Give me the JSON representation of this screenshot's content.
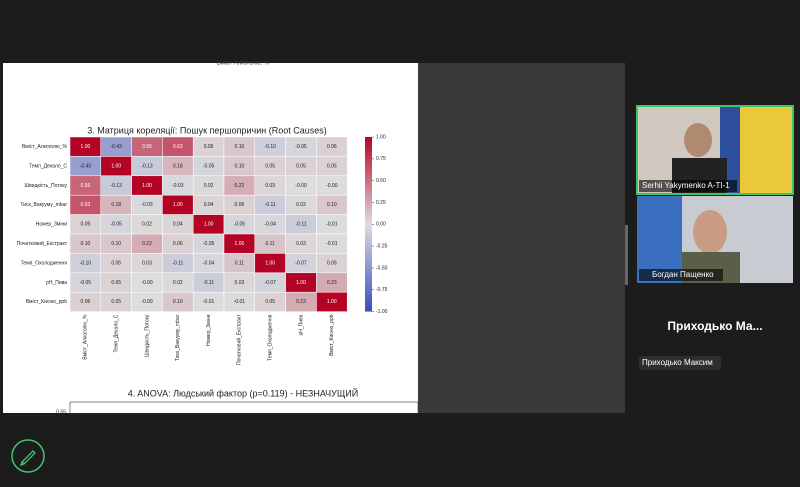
{
  "shared_screen": {
    "clipped_top_label": "Вміст Алкоголю, %",
    "anova": {
      "title": "4. ANOVA: Людський фактор (p=0.119) - НЕЗНАЧУЩИЙ",
      "ytick": "0.55"
    }
  },
  "chart_data": {
    "type": "heatmap",
    "title": "3. Матриця кореляції: Пошук першопричин (Root Causes)",
    "categories": [
      "Вміст_Алкоголю_%",
      "Темп_Декало_С",
      "Швидкість_Потоку",
      "Тиск_Вакууму_mbar",
      "Номер_Зміни",
      "Початковий_Екстракт",
      "Темп_Охолодження",
      "pH_Пива",
      "Вміст_Кисню_ppb"
    ],
    "values": [
      [
        1,
        -0.43,
        0.55,
        0.63,
        0.05,
        0.1,
        -0.1,
        -0.05,
        0.06
      ],
      [
        -0.43,
        1,
        -0.13,
        0.18,
        -0.05,
        0.1,
        0.05,
        0.05,
        0.05
      ],
      [
        0.55,
        -0.13,
        1,
        -0.03,
        0.02,
        0.22,
        0.03,
        0,
        0
      ],
      [
        0.63,
        0.18,
        -0.03,
        1,
        0.04,
        0.06,
        -0.11,
        0.02,
        0.1
      ],
      [
        0.05,
        -0.05,
        0.02,
        0.04,
        1,
        -0.05,
        -0.04,
        -0.11,
        -0.01
      ],
      [
        0.1,
        0.1,
        0.22,
        0.06,
        -0.05,
        1,
        0.11,
        0.03,
        -0.01
      ],
      [
        -0.1,
        0.05,
        0.03,
        -0.11,
        -0.04,
        0.11,
        1,
        -0.07,
        0.05
      ],
      [
        -0.05,
        0.05,
        0,
        0.02,
        -0.11,
        0.03,
        -0.07,
        1,
        0.23
      ],
      [
        0.06,
        0.05,
        0,
        0.1,
        -0.01,
        -0.01,
        0.05,
        0.23,
        1
      ]
    ],
    "value_labels": [
      [
        "1.00",
        "-0.43",
        "0.55",
        "0.63",
        "0.05",
        "0.10",
        "-0.10",
        "-0.05",
        "0.06"
      ],
      [
        "-0.43",
        "1.00",
        "-0.13",
        "0.18",
        "-0.05",
        "0.10",
        "0.05",
        "0.05",
        "0.05"
      ],
      [
        "0.55",
        "-0.13",
        "1.00",
        "-0.03",
        "0.02",
        "0.22",
        "0.03",
        "-0.00",
        "-0.00"
      ],
      [
        "0.63",
        "0.18",
        "-0.03",
        "1.00",
        "0.04",
        "0.06",
        "-0.11",
        "0.02",
        "0.10"
      ],
      [
        "0.05",
        "-0.05",
        "0.02",
        "0.04",
        "1.00",
        "-0.05",
        "-0.04",
        "-0.11",
        "-0.01"
      ],
      [
        "0.10",
        "0.10",
        "0.22",
        "0.06",
        "-0.05",
        "1.00",
        "0.11",
        "0.03",
        "-0.01"
      ],
      [
        "-0.10",
        "0.05",
        "0.03",
        "-0.11",
        "-0.04",
        "0.11",
        "1.00",
        "-0.07",
        "0.05"
      ],
      [
        "-0.05",
        "0.05",
        "-0.00",
        "0.02",
        "-0.11",
        "0.03",
        "-0.07",
        "1.00",
        "0.23"
      ],
      [
        "0.06",
        "0.05",
        "-0.00",
        "0.10",
        "-0.01",
        "-0.01",
        "0.05",
        "0.23",
        "1.00"
      ]
    ],
    "colormap": [
      "#3b4cc0",
      "#dddddd",
      "#b40426"
    ],
    "clim": [
      -1,
      1
    ],
    "cticks": [
      {
        "value": 1,
        "label": "1.00"
      },
      {
        "value": 0.75,
        "label": "0.75"
      },
      {
        "value": 0.5,
        "label": "0.50"
      },
      {
        "value": 0.25,
        "label": "0.25"
      },
      {
        "value": 0,
        "label": "0.00"
      },
      {
        "value": -0.25,
        "label": "-0.25"
      },
      {
        "value": -0.5,
        "label": "-0.50"
      },
      {
        "value": -0.75,
        "label": "-0.75"
      },
      {
        "value": -1,
        "label": "-1.00"
      }
    ]
  },
  "participants": [
    {
      "name": "Serhii Yakymenko A-TI-1"
    },
    {
      "name": "Богдан Пащенко"
    },
    {
      "tile_name": "Приходько Ма...",
      "name": "Приходько Максим"
    }
  ]
}
